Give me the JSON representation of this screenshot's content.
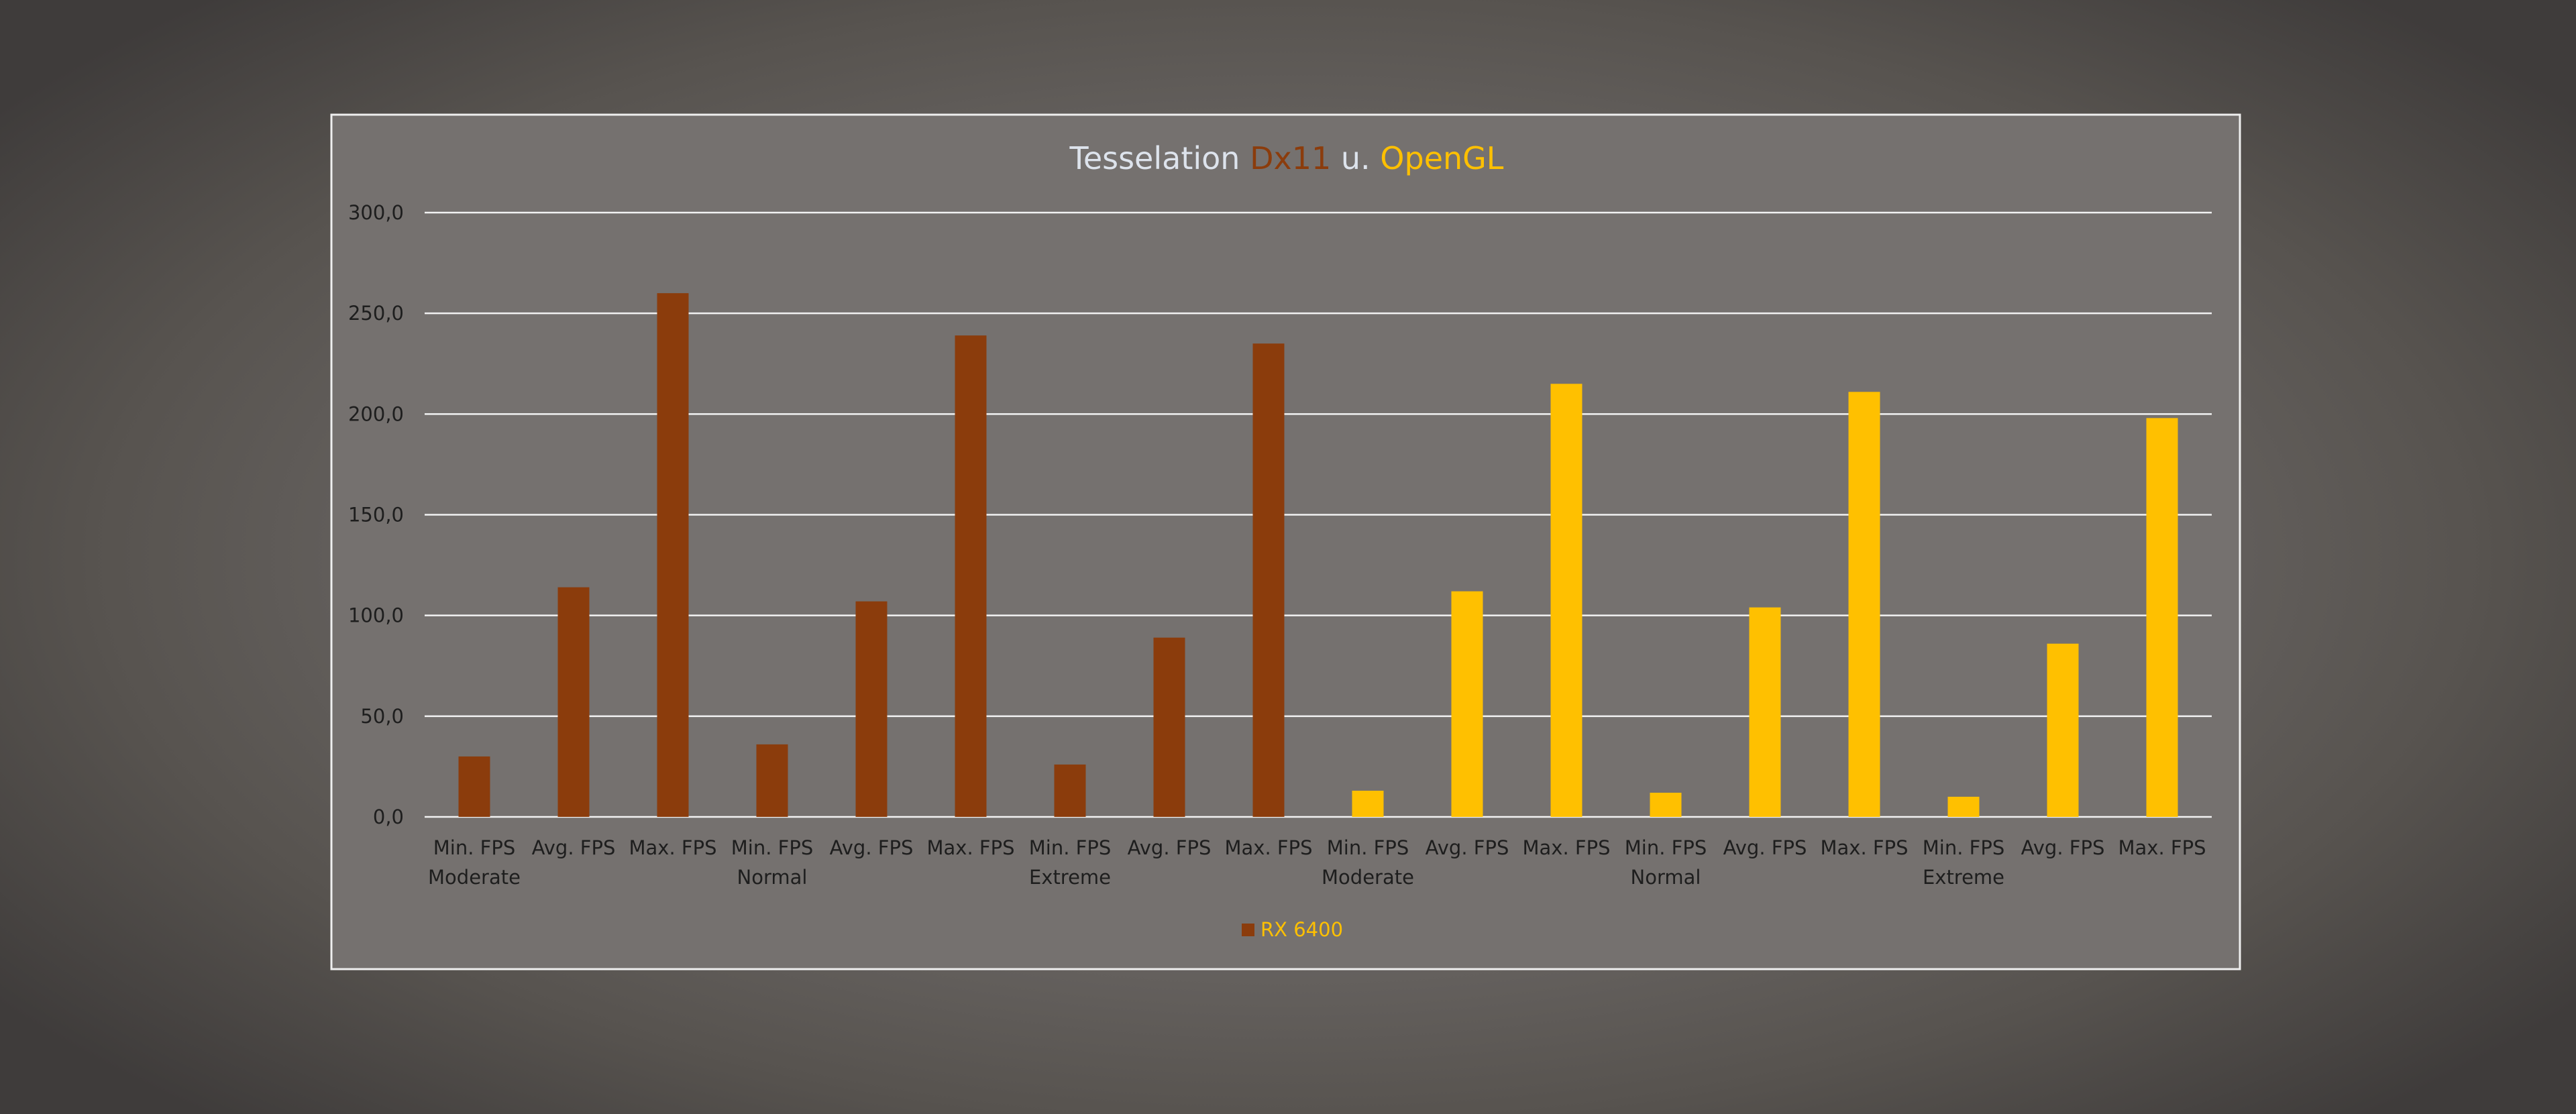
{
  "chart_data": {
    "type": "bar",
    "title": "Tesselation Dx11 u. OpenGL",
    "title_parts": [
      {
        "text": "Tesselation ",
        "color": "#dde3ec"
      },
      {
        "text": "Dx11",
        "color": "#8b3c0c"
      },
      {
        "text": " u. ",
        "color": "#dde3ec"
      },
      {
        "text": "OpenGL",
        "color": "#ffc000"
      }
    ],
    "ylim": [
      0,
      300
    ],
    "yticks": [
      "0,0",
      "50,0",
      "100,0",
      "150,0",
      "200,0",
      "250,0",
      "300,0"
    ],
    "grid": true,
    "categories": [
      "Min. FPS",
      "Avg. FPS",
      "Max. FPS",
      "Min. FPS",
      "Avg. FPS",
      "Max. FPS",
      "Min. FPS",
      "Avg. FPS",
      "Max. FPS",
      "Min. FPS",
      "Avg. FPS",
      "Max. FPS",
      "Min. FPS",
      "Avg. FPS",
      "Max. FPS",
      "Min. FPS",
      "Avg. FPS",
      "Max. FPS"
    ],
    "groups": [
      {
        "label": "Moderate",
        "start": 0
      },
      {
        "label": "Normal",
        "start": 3
      },
      {
        "label": "Extreme",
        "start": 6
      },
      {
        "label": "Moderate",
        "start": 9
      },
      {
        "label": "Normal",
        "start": 12
      },
      {
        "label": "Extreme",
        "start": 15
      }
    ],
    "series": [
      {
        "name": "RX 6400",
        "values": [
          30,
          114,
          260,
          36,
          107,
          239,
          26,
          89,
          235,
          13,
          112,
          215,
          12,
          104,
          211,
          10,
          86,
          198
        ],
        "colors": [
          "#8b3c0c",
          "#8b3c0c",
          "#8b3c0c",
          "#8b3c0c",
          "#8b3c0c",
          "#8b3c0c",
          "#8b3c0c",
          "#8b3c0c",
          "#8b3c0c",
          "#ffc000",
          "#ffc000",
          "#ffc000",
          "#ffc000",
          "#ffc000",
          "#ffc000",
          "#ffc000",
          "#ffc000",
          "#ffc000"
        ]
      }
    ],
    "legend": {
      "position": "bottom",
      "label": "RX 6400",
      "marker_color": "#8b3c0c",
      "text_color": "#ffc000"
    }
  }
}
